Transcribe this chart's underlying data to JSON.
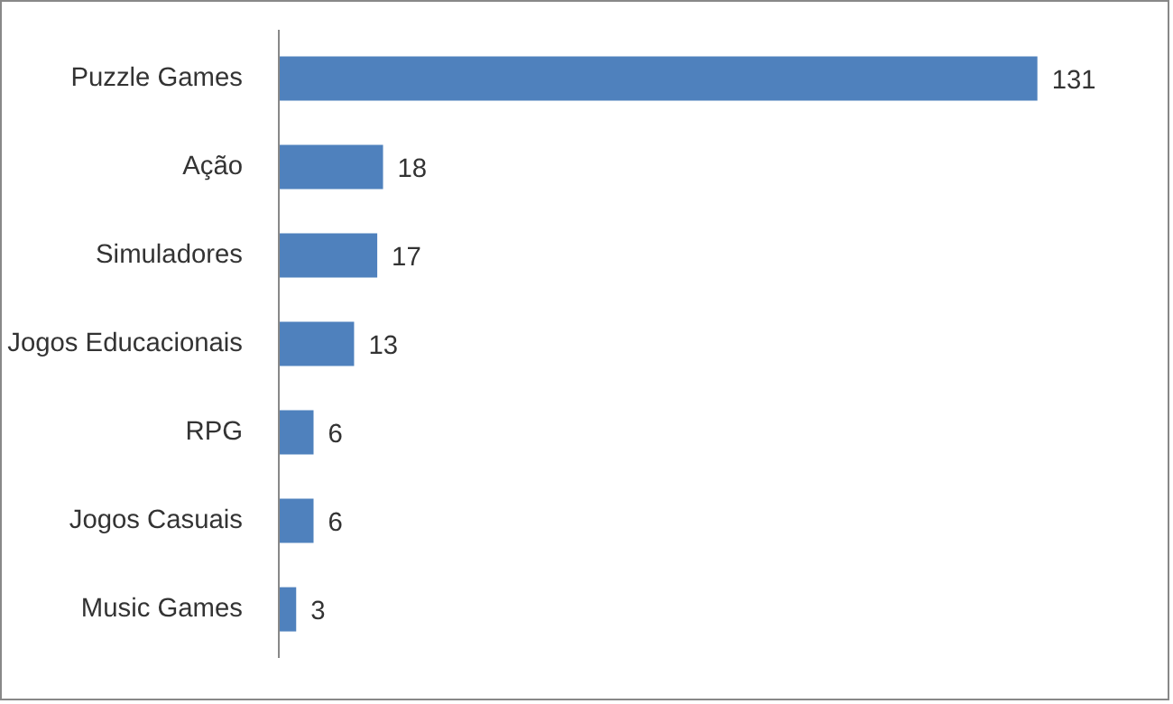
{
  "chart_data": {
    "type": "bar",
    "orientation": "horizontal",
    "categories": [
      "Puzzle Games",
      "Ação",
      "Simuladores",
      "Jogos Educacionais",
      "RPG",
      "Jogos Casuais",
      "Music Games"
    ],
    "values": [
      131,
      18,
      17,
      13,
      6,
      6,
      3
    ],
    "color": "#4f81bd",
    "data_labels": true
  }
}
